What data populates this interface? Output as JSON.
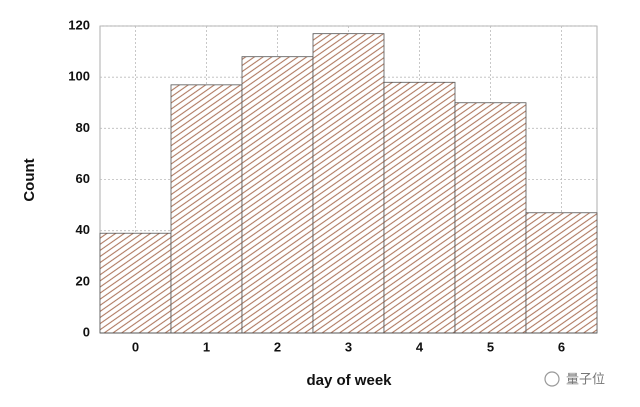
{
  "chart_data": {
    "type": "bar",
    "x_label": "day of week",
    "y_label": "Count",
    "categories": [
      "0",
      "1",
      "2",
      "3",
      "4",
      "5",
      "6"
    ],
    "values": [
      39,
      97,
      108,
      117,
      98,
      90,
      47
    ],
    "color": "#b07a62",
    "ylim": [
      0,
      120
    ],
    "yticks": [
      0,
      20,
      40,
      60,
      80,
      100,
      120
    ],
    "grid": true,
    "watermark": "量子位"
  }
}
